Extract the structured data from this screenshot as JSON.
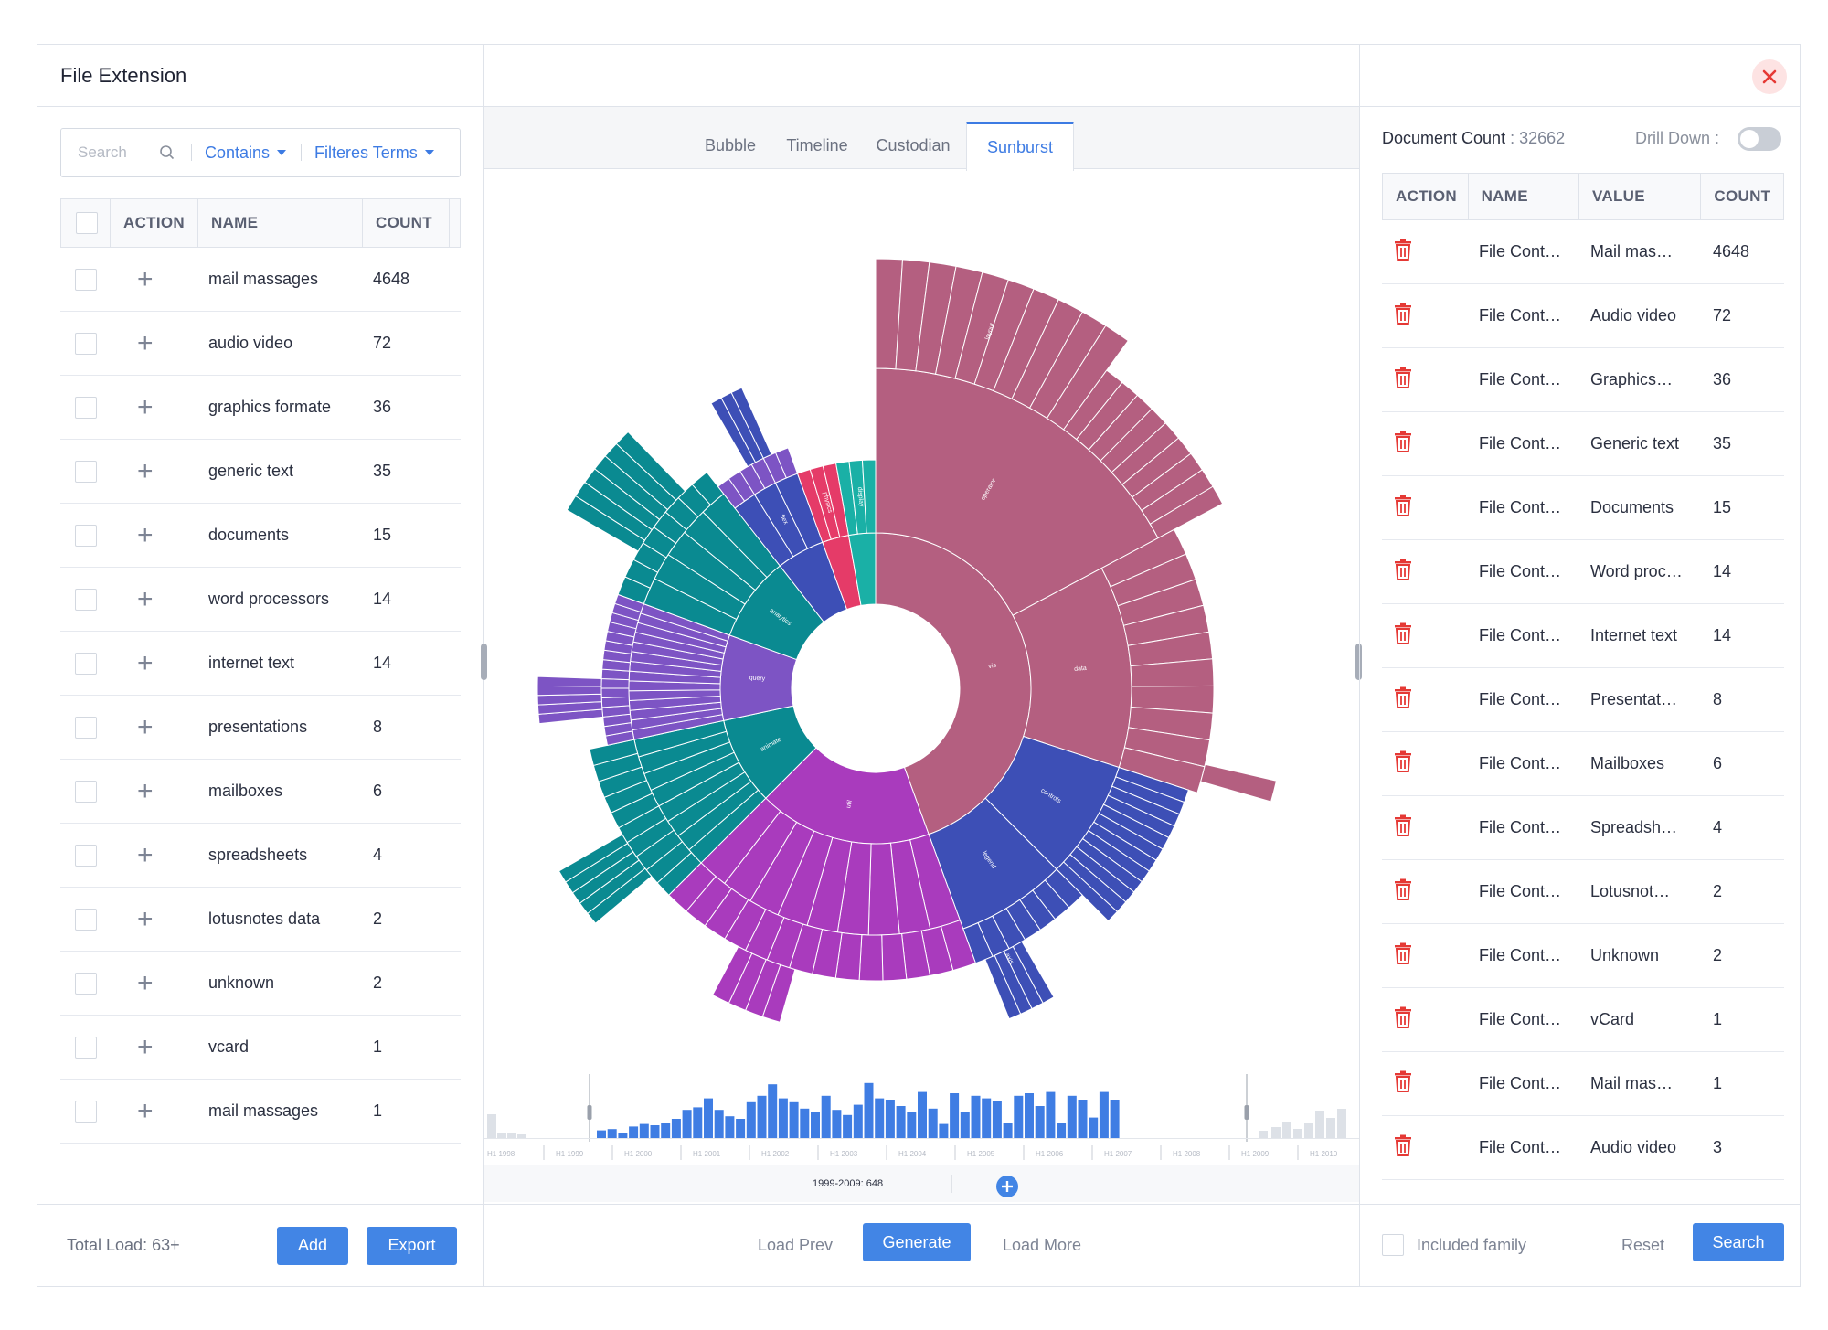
{
  "left": {
    "title": "File Extension",
    "search_placeholder": "Search",
    "filter_mode": "Contains",
    "filter_terms": "Filteres Terms",
    "columns": {
      "action": "ACTION",
      "name": "NAME",
      "count": "COUNT"
    },
    "rows": [
      {
        "name": "mail massages",
        "count": "4648"
      },
      {
        "name": "audio video",
        "count": "72"
      },
      {
        "name": "graphics formate",
        "count": "36"
      },
      {
        "name": "generic text",
        "count": "35"
      },
      {
        "name": "documents",
        "count": "15"
      },
      {
        "name": "word processors",
        "count": "14"
      },
      {
        "name": "internet text",
        "count": "14"
      },
      {
        "name": "presentations",
        "count": "8"
      },
      {
        "name": "mailboxes",
        "count": "6"
      },
      {
        "name": "spreadsheets",
        "count": "4"
      },
      {
        "name": "lotusnotes data",
        "count": "2"
      },
      {
        "name": "unknown",
        "count": "2"
      },
      {
        "name": "vcard",
        "count": "1"
      },
      {
        "name": "mail massages",
        "count": "1"
      }
    ],
    "total_load": "Total Load: 63+",
    "add_label": "Add",
    "export_label": "Export"
  },
  "center": {
    "tabs": [
      "Bubble",
      "Timeline",
      "Custodian",
      "Sunburst"
    ],
    "active_tab": "Sunburst",
    "timeline_labels": [
      "H1 1998",
      "H1 1999",
      "H1 2000",
      "H1 2001",
      "H1 2002",
      "H1 2003",
      "H1 2004",
      "H1 2005",
      "H1 2006",
      "H1 2007",
      "H1 2008",
      "H1 2009",
      "H1 2010"
    ],
    "timeline_readout": "1999-2009: 648",
    "load_prev": "Load Prev",
    "generate": "Generate",
    "load_more": "Load More",
    "colors": {
      "mauve": "#b45f80",
      "blue": "#3d4fb6",
      "magenta": "#a93bbd",
      "teal": "#0a8a91",
      "purple": "#7d54c4",
      "red": "#e53b68",
      "cyan": "#1ab0a6"
    },
    "sunburst_labels": {
      "vis": "vis",
      "util": "util",
      "scale": "scale",
      "query": "query",
      "analytics": "analytics",
      "animate": "animate",
      "display": "display",
      "flex": "flex",
      "physics": "physics",
      "data": "data",
      "controls": "controls",
      "legend": "legend",
      "axis": "axis",
      "operator": "operator",
      "events": "events",
      "layout": "layout"
    }
  },
  "right": {
    "doc_count_label": "Document Count",
    "doc_count_value": ": 32662",
    "drill_down_label": "Drill Down :",
    "columns": {
      "action": "ACTION",
      "name": "NAME",
      "value": "VALUE",
      "count": "COUNT"
    },
    "rows": [
      {
        "name": "File Cont…",
        "value": "Mail mas…",
        "count": "4648"
      },
      {
        "name": "File Cont…",
        "value": "Audio video",
        "count": "72"
      },
      {
        "name": "File Cont…",
        "value": "Graphics…",
        "count": "36"
      },
      {
        "name": "File Cont…",
        "value": "Generic text",
        "count": "35"
      },
      {
        "name": "File Cont…",
        "value": "Documents",
        "count": "15"
      },
      {
        "name": "File Cont…",
        "value": "Word proc…",
        "count": "14"
      },
      {
        "name": "File Cont…",
        "value": "Internet text",
        "count": "14"
      },
      {
        "name": "File Cont…",
        "value": "Presentat…",
        "count": "8"
      },
      {
        "name": "File Cont…",
        "value": "Mailboxes",
        "count": "6"
      },
      {
        "name": "File Cont…",
        "value": "Spreadsh…",
        "count": "4"
      },
      {
        "name": "File Cont…",
        "value": "Lotusnot…",
        "count": "2"
      },
      {
        "name": "File Cont…",
        "value": "Unknown",
        "count": "2"
      },
      {
        "name": "File Cont…",
        "value": "vCard",
        "count": "1"
      },
      {
        "name": "File Cont…",
        "value": "Mail mas…",
        "count": "1"
      },
      {
        "name": "File Cont…",
        "value": "Audio video",
        "count": "3"
      }
    ],
    "included_family": "Included family",
    "reset_label": "Reset",
    "search_label": "Search"
  }
}
